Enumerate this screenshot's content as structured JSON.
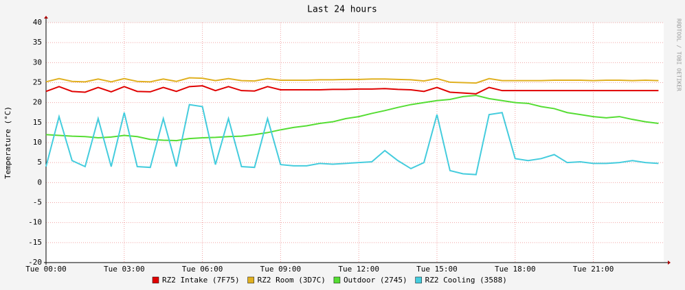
{
  "chart_data": {
    "type": "line",
    "title": "Last 24 hours",
    "y_label": "Temperature (°C)",
    "watermark": "RRDTOOL / TOBI OETIKER",
    "x": [
      0,
      0.5,
      1,
      1.5,
      2,
      2.5,
      3,
      3.5,
      4,
      4.5,
      5,
      5.5,
      6,
      6.5,
      7,
      7.5,
      8,
      8.5,
      9,
      9.5,
      10,
      10.5,
      11,
      11.5,
      12,
      12.5,
      13,
      13.5,
      14,
      14.5,
      15,
      15.5,
      16,
      16.5,
      17,
      17.5,
      18,
      18.5,
      19,
      19.5,
      20,
      20.5,
      21,
      21.5,
      22,
      22.5,
      23,
      23.5
    ],
    "xlim": [
      0,
      23.7
    ],
    "xticks": [
      {
        "value": 0,
        "label": "Tue 00:00"
      },
      {
        "value": 3,
        "label": "Tue 03:00"
      },
      {
        "value": 6,
        "label": "Tue 06:00"
      },
      {
        "value": 9,
        "label": "Tue 09:00"
      },
      {
        "value": 12,
        "label": "Tue 12:00"
      },
      {
        "value": 15,
        "label": "Tue 15:00"
      },
      {
        "value": 18,
        "label": "Tue 18:00"
      },
      {
        "value": 21,
        "label": "Tue 21:00"
      }
    ],
    "ylim": [
      -20,
      40
    ],
    "yticks": [
      -20,
      -15,
      -10,
      -5,
      0,
      5,
      10,
      15,
      20,
      25,
      30,
      35,
      40
    ],
    "grid": true,
    "series": [
      {
        "name": "RZ2 Intake (7F75)",
        "color": "#e00000",
        "values": [
          22.8,
          24,
          22.8,
          22.6,
          23.8,
          22.7,
          24,
          22.8,
          22.7,
          23.8,
          22.8,
          24,
          24.2,
          23,
          24,
          23,
          22.9,
          24,
          23.2,
          23.2,
          23.2,
          23.2,
          23.3,
          23.3,
          23.4,
          23.4,
          23.5,
          23.3,
          23.2,
          22.8,
          23.8,
          22.6,
          22.4,
          22.2,
          23.8,
          23,
          23,
          23,
          23,
          23,
          23,
          23,
          23,
          23,
          23,
          23,
          23,
          23
        ]
      },
      {
        "name": "RZ2 Room (3D7C)",
        "color": "#e0b020",
        "values": [
          25.2,
          26,
          25.3,
          25.2,
          25.9,
          25.2,
          26,
          25.3,
          25.2,
          25.9,
          25.3,
          26.2,
          26.1,
          25.5,
          26,
          25.5,
          25.4,
          26,
          25.6,
          25.6,
          25.6,
          25.7,
          25.7,
          25.8,
          25.8,
          25.9,
          25.9,
          25.8,
          25.7,
          25.4,
          26,
          25.1,
          25,
          24.9,
          26,
          25.5,
          25.5,
          25.5,
          25.5,
          25.6,
          25.6,
          25.6,
          25.5,
          25.6,
          25.6,
          25.5,
          25.6,
          25.5
        ]
      },
      {
        "name": "Outdoor (2745)",
        "color": "#55dd33",
        "values": [
          12,
          11.8,
          11.6,
          11.5,
          11.2,
          11.4,
          11.8,
          11.5,
          10.8,
          10.6,
          10.5,
          11,
          11.2,
          11.3,
          11.5,
          11.6,
          12,
          12.5,
          13.2,
          13.8,
          14.2,
          14.8,
          15.2,
          16,
          16.5,
          17.3,
          18,
          18.8,
          19.5,
          20,
          20.5,
          20.8,
          21.5,
          21.8,
          21,
          20.5,
          20,
          19.8,
          19,
          18.5,
          17.5,
          17,
          16.5,
          16.2,
          16.5,
          15.8,
          15.2,
          14.8
        ]
      },
      {
        "name": "RZ2 Cooling (3588)",
        "color": "#44ccdd",
        "values": [
          4,
          16.5,
          5.5,
          4,
          16,
          4,
          17.5,
          4,
          3.8,
          16,
          4,
          19.5,
          19,
          4.5,
          16,
          4,
          3.8,
          16,
          4.5,
          4.2,
          4.2,
          4.8,
          4.6,
          4.8,
          5,
          5.2,
          8,
          5.5,
          3.5,
          5,
          17,
          3,
          2.2,
          2,
          17,
          17.5,
          6,
          5.5,
          6,
          7,
          5,
          5.2,
          4.8,
          4.8,
          5,
          5.5,
          5,
          4.8
        ]
      }
    ]
  }
}
